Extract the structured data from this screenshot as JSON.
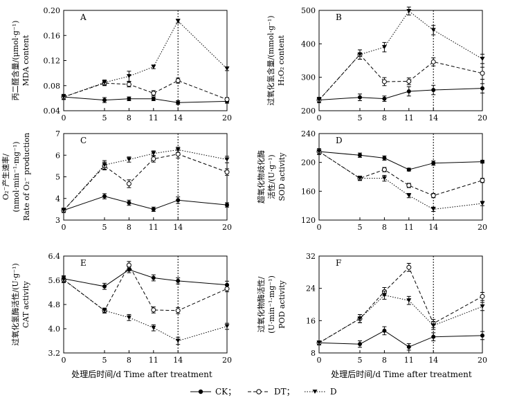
{
  "chart_data": [
    {
      "type": "line",
      "panel": "A",
      "ylabel_lines": [
        "丙二醛含量/(μmol·g⁻¹)",
        "MDA content"
      ],
      "x": [
        0,
        5,
        8,
        11,
        14,
        20
      ],
      "x_tick_labels": [
        "0",
        "5",
        "8",
        "11",
        "14",
        "20"
      ],
      "ylim": [
        0.04,
        0.2
      ],
      "y_ticks": [
        "0.04",
        "0.08",
        "0.12",
        "0.16",
        "0.20"
      ],
      "vline_x": 14,
      "series": [
        {
          "name": "CK",
          "values": [
            0.062,
            0.057,
            0.059,
            0.059,
            0.053,
            0.055
          ],
          "errors": [
            0.004,
            0.004,
            0.003,
            0.003,
            0.003,
            0.003
          ]
        },
        {
          "name": "DT",
          "values": [
            0.062,
            0.084,
            0.082,
            0.068,
            0.088,
            0.058
          ],
          "errors": [
            0.004,
            0.004,
            0.004,
            0.004,
            0.004,
            0.003
          ]
        },
        {
          "name": "D",
          "values": [
            0.062,
            0.085,
            0.095,
            0.11,
            0.183,
            0.107
          ],
          "errors": [
            0.004,
            0.004,
            0.008,
            0.003,
            0.003,
            0.003
          ]
        }
      ]
    },
    {
      "type": "line",
      "panel": "B",
      "ylabel_lines": [
        "过氧化氢含量/(mmol·g⁻¹)",
        "H₂O₂ content"
      ],
      "x": [
        0,
        5,
        8,
        11,
        14,
        20
      ],
      "x_tick_labels": [
        "0",
        "5",
        "8",
        "11",
        "14",
        "20"
      ],
      "ylim": [
        200,
        500
      ],
      "y_ticks": [
        "200",
        "300",
        "400",
        "500"
      ],
      "vline_x": 14,
      "series": [
        {
          "name": "CK",
          "values": [
            232,
            240,
            236,
            258,
            262,
            267
          ],
          "errors": [
            8,
            10,
            8,
            14,
            14,
            14
          ]
        },
        {
          "name": "DT",
          "values": [
            232,
            368,
            287,
            288,
            346,
            312
          ],
          "errors": [
            8,
            14,
            12,
            10,
            12,
            18
          ]
        },
        {
          "name": "D",
          "values": [
            232,
            368,
            390,
            498,
            441,
            355
          ],
          "errors": [
            8,
            14,
            14,
            12,
            14,
            14
          ]
        }
      ]
    },
    {
      "type": "line",
      "panel": "C",
      "ylabel_lines": [
        "O₂⁻产生速率/",
        "(nmol·min⁻¹·mg⁻¹)",
        "Rate of O₂⁻ production"
      ],
      "x": [
        0,
        5,
        8,
        11,
        14,
        20
      ],
      "x_tick_labels": [
        "0",
        "5",
        "8",
        "11",
        "14",
        "20"
      ],
      "ylim": [
        3,
        7
      ],
      "y_ticks": [
        "3",
        "4",
        "5",
        "6",
        "7"
      ],
      "vline_x": 14,
      "series": [
        {
          "name": "CK",
          "values": [
            3.45,
            4.1,
            3.8,
            3.5,
            3.92,
            3.7
          ],
          "errors": [
            0.1,
            0.12,
            0.12,
            0.1,
            0.15,
            0.1
          ]
        },
        {
          "name": "DT",
          "values": [
            3.45,
            5.5,
            4.68,
            5.83,
            6.05,
            5.22
          ],
          "errors": [
            0.1,
            0.18,
            0.18,
            0.15,
            0.18,
            0.15
          ]
        },
        {
          "name": "D",
          "values": [
            3.45,
            5.55,
            5.8,
            6.08,
            6.25,
            5.8
          ],
          "errors": [
            0.1,
            0.2,
            0.12,
            0.12,
            0.12,
            0.15
          ]
        }
      ]
    },
    {
      "type": "line",
      "panel": "D",
      "ylabel_lines": [
        "超氧化物歧化酶",
        "活性/(U·g⁻¹)",
        "SOD activity"
      ],
      "x": [
        0,
        5,
        8,
        11,
        14,
        20
      ],
      "x_tick_labels": [
        "0",
        "5",
        "8",
        "11",
        "14",
        "20"
      ],
      "ylim": [
        120,
        240
      ],
      "y_ticks": [
        "120",
        "160",
        "200",
        "240"
      ],
      "vline_x": 14,
      "series": [
        {
          "name": "CK",
          "values": [
            215,
            210,
            206,
            190,
            199,
            201
          ],
          "errors": [
            4,
            3,
            3,
            2,
            3,
            2
          ]
        },
        {
          "name": "DT",
          "values": [
            215,
            178,
            190,
            168,
            154,
            175
          ],
          "errors": [
            4,
            3,
            3,
            3,
            3,
            3
          ]
        },
        {
          "name": "D",
          "values": [
            215,
            178,
            178,
            154,
            135,
            143
          ],
          "errors": [
            4,
            3,
            4,
            3,
            3,
            3
          ]
        }
      ]
    },
    {
      "type": "line",
      "panel": "E",
      "ylabel_lines": [
        "过氧化氢酶活性/(U·g⁻¹)",
        "CAT activity"
      ],
      "x": [
        0,
        5,
        8,
        11,
        14,
        20
      ],
      "x_tick_labels": [
        "0",
        "5",
        "8",
        "11",
        "14",
        "20"
      ],
      "ylim": [
        3.2,
        6.4
      ],
      "y_ticks": [
        "3.2",
        "4.0",
        "4.8",
        "5.6",
        "6.4"
      ],
      "vline_x": 14,
      "series": [
        {
          "name": "CK",
          "values": [
            5.65,
            5.4,
            5.95,
            5.68,
            5.58,
            5.45
          ],
          "errors": [
            0.1,
            0.1,
            0.1,
            0.1,
            0.1,
            0.12
          ]
        },
        {
          "name": "DT",
          "values": [
            5.62,
            4.6,
            6.1,
            4.62,
            4.6,
            5.32
          ],
          "errors": [
            0.1,
            0.08,
            0.12,
            0.1,
            0.1,
            0.1
          ]
        },
        {
          "name": "D",
          "values": [
            5.62,
            4.6,
            4.37,
            4.03,
            3.6,
            4.08
          ],
          "errors": [
            0.1,
            0.08,
            0.1,
            0.1,
            0.12,
            0.1
          ]
        }
      ]
    },
    {
      "type": "line",
      "panel": "F",
      "ylabel_lines": [
        "过氧化物酶活性/",
        "(U·min⁻¹·mg⁻¹)",
        "POD activity"
      ],
      "x": [
        0,
        5,
        8,
        11,
        14,
        20
      ],
      "x_tick_labels": [
        "0",
        "5",
        "8",
        "11",
        "14",
        "20"
      ],
      "ylim": [
        8,
        32
      ],
      "y_ticks": [
        "8",
        "16",
        "24",
        "32"
      ],
      "vline_x": 14,
      "series": [
        {
          "name": "CK",
          "values": [
            10.5,
            10.2,
            13.5,
            9.5,
            12.0,
            12.3
          ],
          "errors": [
            0.5,
            0.8,
            1.0,
            0.8,
            1.0,
            1.0
          ]
        },
        {
          "name": "DT",
          "values": [
            10.5,
            16.5,
            23.2,
            29.2,
            15.3,
            22.0
          ],
          "errors": [
            0.5,
            1.0,
            1.0,
            1.0,
            1.0,
            1.0
          ]
        },
        {
          "name": "D",
          "values": [
            10.5,
            16.5,
            22.3,
            21.0,
            14.8,
            19.5
          ],
          "errors": [
            0.5,
            1.0,
            1.0,
            1.0,
            1.0,
            1.0
          ]
        }
      ]
    }
  ],
  "xlabel": "处理后时间/d   Time after treatment",
  "legend": [
    {
      "name": "CK",
      "label": "CK；"
    },
    {
      "name": "DT",
      "label": "DT；"
    },
    {
      "name": "D",
      "label": "D"
    }
  ],
  "colors": {
    "line": "#000000",
    "open_marker_fill": "#ffffff"
  }
}
